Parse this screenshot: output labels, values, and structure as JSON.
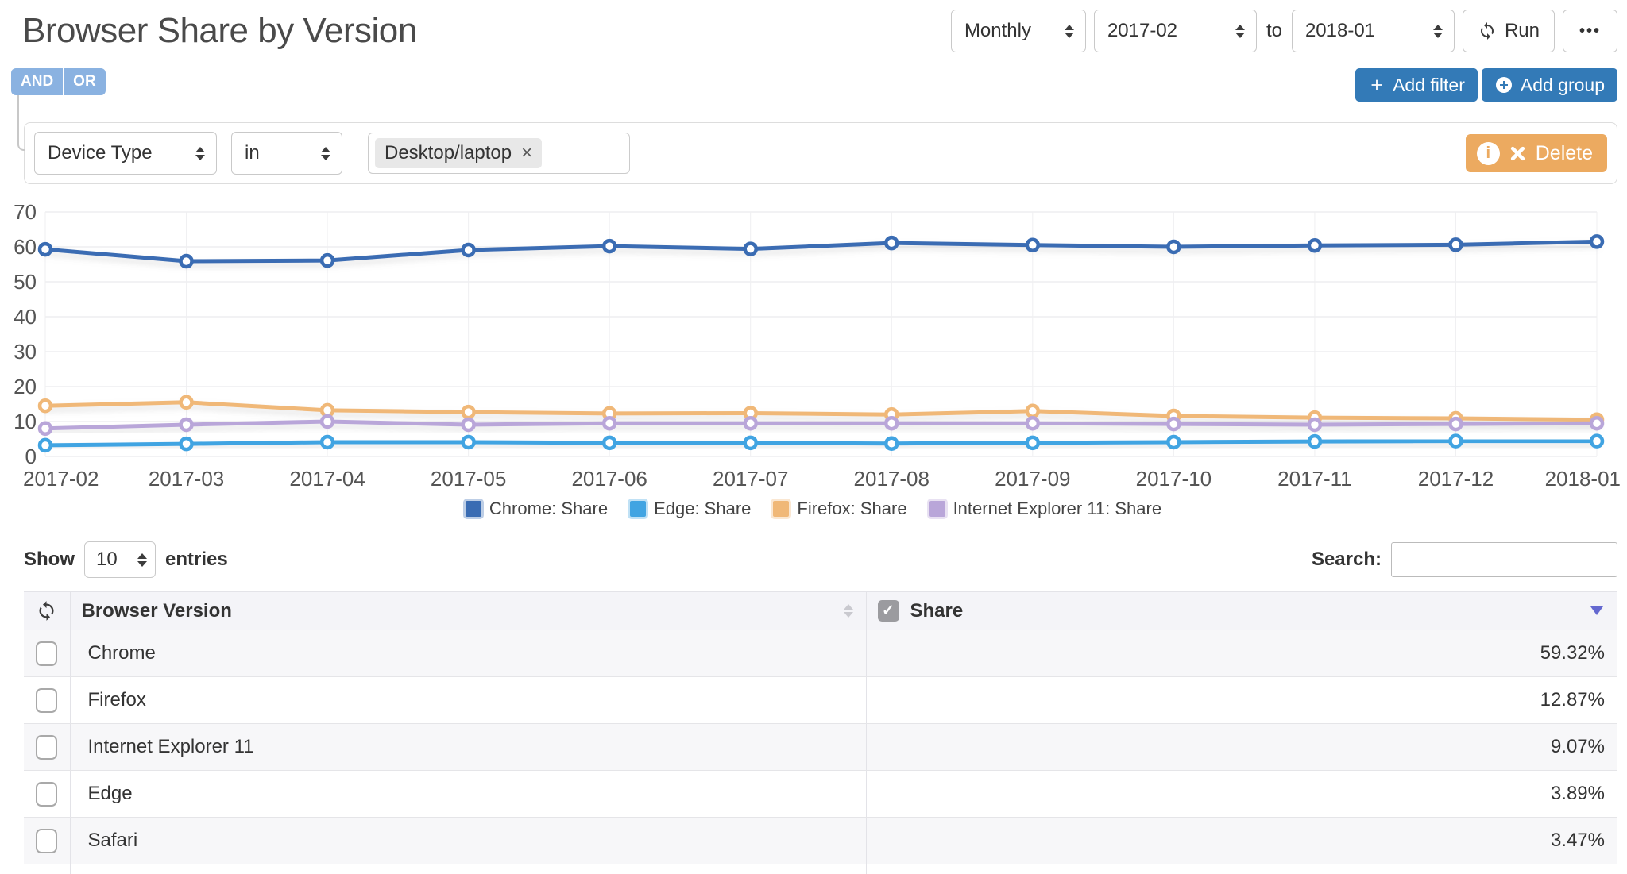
{
  "header": {
    "title": "Browser Share by Version",
    "interval": "Monthly",
    "date_from": "2017-02",
    "to_label": "to",
    "date_to": "2018-01",
    "run_label": "Run",
    "more_label": "•••"
  },
  "filters": {
    "and_label": "AND",
    "or_label": "OR",
    "add_filter_label": "Add filter",
    "add_group_label": "Add group",
    "delete_label": "Delete",
    "rule": {
      "field": "Device Type",
      "operator": "in",
      "value": "Desktop/laptop"
    }
  },
  "colors": {
    "primary_button": "#337ab7",
    "and_or_button": "#8ab2e1",
    "delete_button": "#ecaa60",
    "sort_active": "#6468d0"
  },
  "chart_data": {
    "type": "line",
    "title": "",
    "xlabel": "",
    "ylabel": "",
    "x": [
      "2017-02",
      "2017-03",
      "2017-04",
      "2017-05",
      "2017-06",
      "2017-07",
      "2017-08",
      "2017-09",
      "2017-10",
      "2017-11",
      "2017-12",
      "2018-01"
    ],
    "ylim": [
      0,
      70
    ],
    "ytick_step": 10,
    "grid": true,
    "legend_position": "bottom",
    "series": [
      {
        "name": "Chrome: Share",
        "color": "#3a6cb3",
        "values": [
          59.3,
          55.9,
          56.1,
          59.1,
          60.2,
          59.4,
          61.1,
          60.5,
          60.0,
          60.4,
          60.6,
          61.5
        ]
      },
      {
        "name": "Edge: Share",
        "color": "#41a4e2",
        "values": [
          3.2,
          3.6,
          4.1,
          4.1,
          3.9,
          3.9,
          3.7,
          3.9,
          4.1,
          4.3,
          4.4,
          4.4
        ]
      },
      {
        "name": "Firefox: Share",
        "color": "#f0b878",
        "values": [
          14.5,
          15.5,
          13.2,
          12.7,
          12.3,
          12.4,
          12.0,
          13.0,
          11.6,
          11.1,
          10.9,
          10.5
        ]
      },
      {
        "name": "Internet Explorer 11: Share",
        "color": "#b9a6d9",
        "values": [
          8.0,
          9.1,
          10.0,
          9.1,
          9.5,
          9.5,
          9.5,
          9.5,
          9.3,
          9.1,
          9.3,
          9.5
        ]
      }
    ]
  },
  "table": {
    "show_label": "Show",
    "page_size": "10",
    "entries_label": "entries",
    "search_label": "Search:",
    "search_value": "",
    "columns": [
      "Browser Version",
      "Share"
    ],
    "rows": [
      {
        "browser": "Chrome",
        "share": "59.32%"
      },
      {
        "browser": "Firefox",
        "share": "12.87%"
      },
      {
        "browser": "Internet Explorer 11",
        "share": "9.07%"
      },
      {
        "browser": "Edge",
        "share": "3.89%"
      },
      {
        "browser": "Safari",
        "share": "3.47%"
      }
    ]
  }
}
